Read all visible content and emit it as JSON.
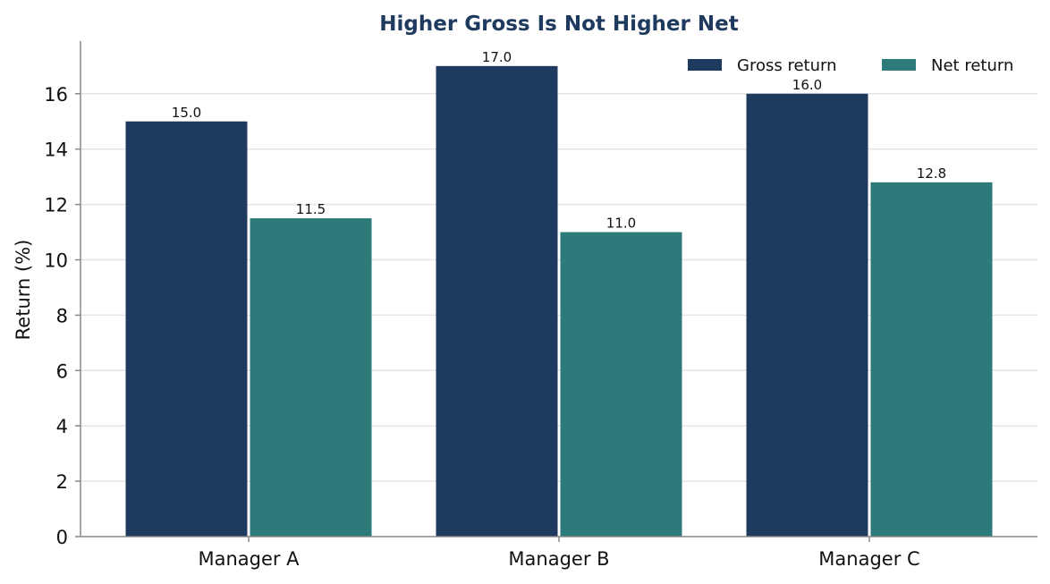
{
  "chart_data": {
    "type": "bar",
    "title": "Higher Gross Is Not Higher Net",
    "xlabel": "",
    "ylabel": "Return (%)",
    "categories": [
      "Manager A",
      "Manager B",
      "Manager C"
    ],
    "series": [
      {
        "name": "Gross return",
        "values": [
          15.0,
          17.0,
          16.0
        ],
        "color": "#1f3a5f"
      },
      {
        "name": "Net return",
        "values": [
          11.5,
          11.0,
          12.8
        ],
        "color": "#2d7a7b"
      }
    ],
    "data_labels": [
      [
        "15.0",
        "17.0",
        "16.0"
      ],
      [
        "11.5",
        "11.0",
        "12.8"
      ]
    ],
    "ylim": [
      0,
      17.9
    ],
    "yticks": [
      0,
      2,
      4,
      6,
      8,
      10,
      12,
      14,
      16
    ],
    "grid": "horizontal",
    "legend_position": "top-right",
    "title_color": "#1f3a5f",
    "axis_color": "#888888",
    "grid_color": "#e4e4e4"
  }
}
